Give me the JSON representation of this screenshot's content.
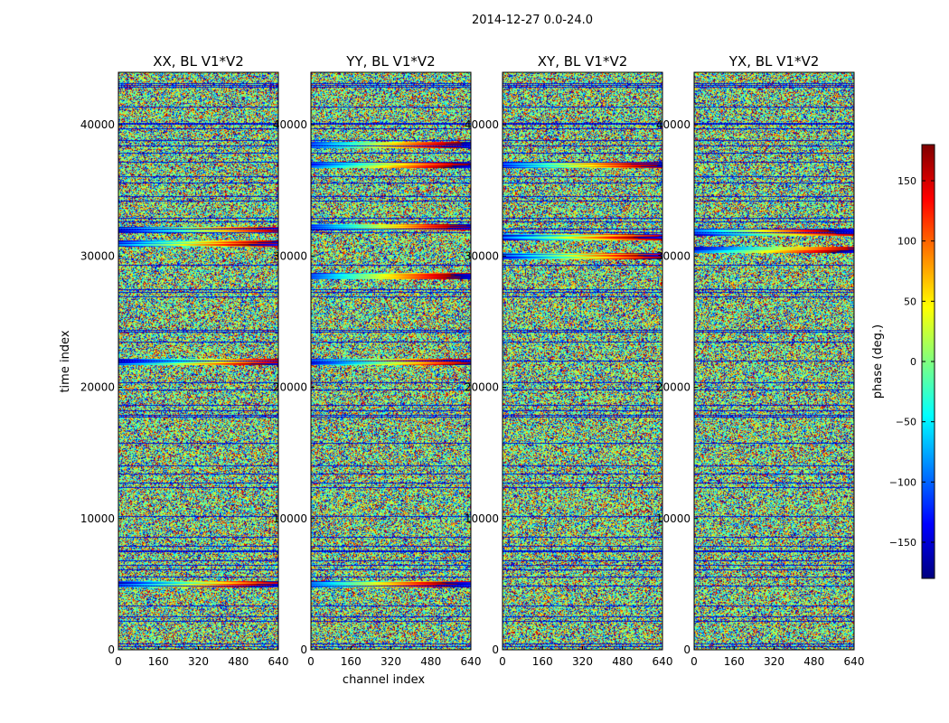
{
  "suptitle": "2014-12-27 0.0-24.0",
  "chart_data": {
    "type": "heatmap",
    "panels": [
      {
        "title": "XX, BL V1*V2",
        "bands": [
          5000,
          22000,
          31000,
          32000
        ],
        "xlabel": ""
      },
      {
        "title": "YY, BL V1*V2",
        "bands": [
          5000,
          22000,
          28500,
          32200,
          37000,
          38500
        ],
        "xlabel": "channel index"
      },
      {
        "title": "XY, BL V1*V2",
        "bands": [
          30000,
          31500,
          37000
        ],
        "xlabel": ""
      },
      {
        "title": "YX, BL V1*V2",
        "bands": [
          30500,
          31800
        ],
        "xlabel": ""
      }
    ],
    "xlim": [
      0,
      640
    ],
    "ylim": [
      0,
      44000
    ],
    "xticks": [
      "0",
      "160",
      "320",
      "480",
      "640"
    ],
    "xtick_values": [
      0,
      160,
      320,
      480,
      640
    ],
    "yticks": [
      "0",
      "10000",
      "20000",
      "30000",
      "40000"
    ],
    "ytick_values": [
      0,
      10000,
      20000,
      30000,
      40000
    ],
    "ylabel": "time index",
    "colorbar": {
      "label": "phase (deg.)",
      "range": [
        -180,
        180
      ],
      "ticks": [
        "−150",
        "−100",
        "−50",
        "0",
        "50",
        "100",
        "150"
      ],
      "tick_values": [
        -150,
        -100,
        -50,
        0,
        50,
        100,
        150
      ],
      "colormap": "jet"
    }
  }
}
